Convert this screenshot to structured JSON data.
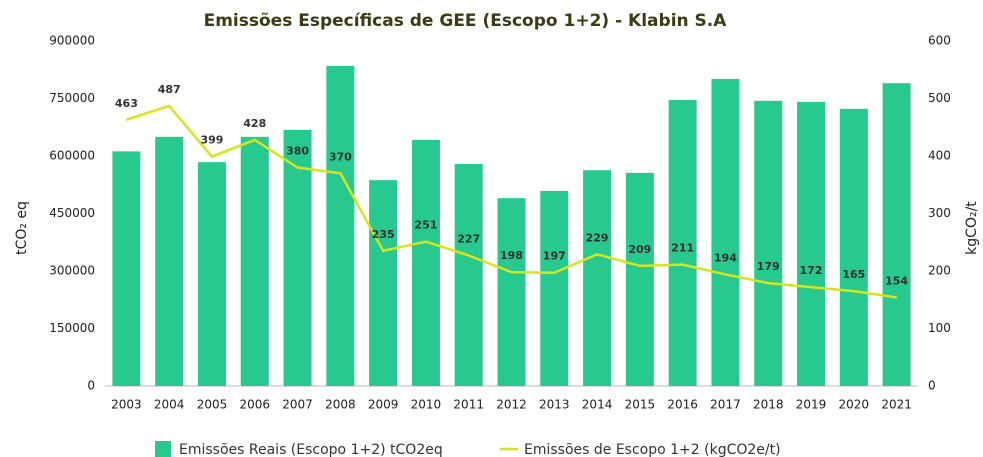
{
  "chart_data": {
    "type": "bar",
    "title": "Emissões Específicas de GEE (Escopo 1+2) - Klabin S.A",
    "y_label": "tCO₂ eq",
    "y2_label": "kgCO₂/t",
    "categories": [
      "2003",
      "2004",
      "2005",
      "2006",
      "2007",
      "2008",
      "2009",
      "2010",
      "2011",
      "2012",
      "2013",
      "2014",
      "2015",
      "2016",
      "2017",
      "2018",
      "2019",
      "2020",
      "2021"
    ],
    "series": [
      {
        "name": "Emissões Reais (Escopo 1+2) tCO2eq",
        "type": "bar",
        "color": "#28c98f",
        "values": [
          612000,
          650000,
          584000,
          650000,
          668000,
          835000,
          537000,
          642000,
          579000,
          490000,
          509000,
          563000,
          556000,
          746000,
          801000,
          744000,
          741000,
          723000,
          790000
        ]
      },
      {
        "name": "Emissões de Escopo 1+2 (kgCO2e/t)",
        "type": "line",
        "axis": "y2",
        "color": "#d7e41c",
        "values": [
          463,
          487,
          399,
          428,
          380,
          370,
          235,
          251,
          227,
          198,
          197,
          229,
          209,
          211,
          194,
          179,
          172,
          165,
          154
        ]
      }
    ],
    "ylim": [
      0,
      900000
    ],
    "yticks": [
      0,
      150000,
      300000,
      450000,
      600000,
      750000,
      900000
    ],
    "y2lim": [
      0,
      600
    ],
    "y2ticks": [
      0,
      100,
      200,
      300,
      400,
      500,
      600
    ],
    "grid": false,
    "legend": "bottom"
  }
}
